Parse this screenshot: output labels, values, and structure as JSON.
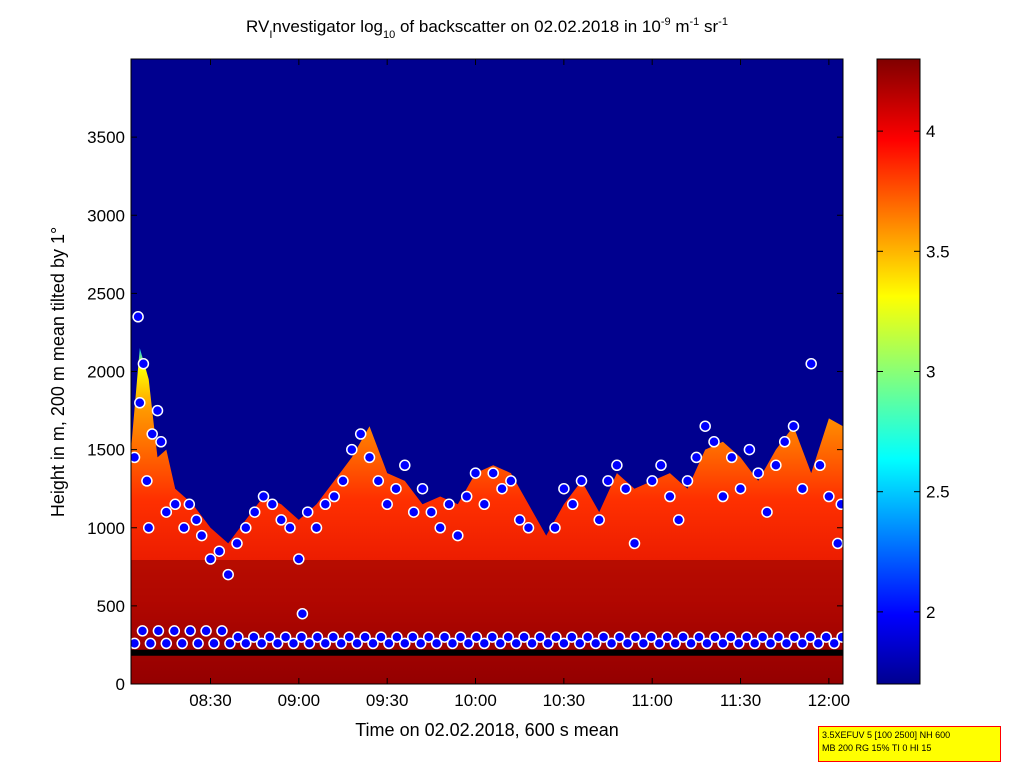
{
  "chart_data": {
    "type": "heatmap",
    "title": {
      "pre": "RV",
      "sub_i": "I",
      "mid": "nvestigator log",
      "sub10": "10",
      "post1": " of backscatter on 02.02.2018 in 10",
      "sup_m9": "-9",
      "post2": " m",
      "sup_m1": "-1",
      "post3": " sr",
      "sup_m1b": "-1"
    },
    "xlabel": "Time on 02.02.2018, 600 s mean",
    "ylabel": "Height in m, 200 m mean tilted by 1°",
    "x_ticks": [
      "08:30",
      "09:00",
      "09:30",
      "10:00",
      "10:30",
      "11:00",
      "11:30",
      "12:00"
    ],
    "x_tick_hours": [
      8.5,
      9.0,
      9.5,
      10.0,
      10.5,
      11.0,
      11.5,
      12.0
    ],
    "x_range_hours": [
      8.05,
      12.08
    ],
    "y_ticks": [
      "0",
      "500",
      "1000",
      "1500",
      "2000",
      "2500",
      "3000",
      "3500"
    ],
    "y_tick_values": [
      0,
      500,
      1000,
      1500,
      2000,
      2500,
      3000,
      3500
    ],
    "y_range": [
      0,
      4000
    ],
    "colorbar": {
      "ticks": [
        "2",
        "2.5",
        "3",
        "3.5",
        "4"
      ],
      "tick_values": [
        2,
        2.5,
        3,
        3.5,
        4
      ],
      "range": [
        1.7,
        4.3
      ],
      "colormap": "jet"
    },
    "cloud_top_profile": [
      [
        8.05,
        1500
      ],
      [
        8.1,
        2150
      ],
      [
        8.15,
        1950
      ],
      [
        8.2,
        1450
      ],
      [
        8.25,
        1500
      ],
      [
        8.3,
        1250
      ],
      [
        8.4,
        1150
      ],
      [
        8.5,
        1000
      ],
      [
        8.6,
        900
      ],
      [
        8.7,
        1050
      ],
      [
        8.8,
        1200
      ],
      [
        8.9,
        1150
      ],
      [
        9.0,
        1050
      ],
      [
        9.1,
        1150
      ],
      [
        9.2,
        1300
      ],
      [
        9.3,
        1450
      ],
      [
        9.4,
        1650
      ],
      [
        9.5,
        1350
      ],
      [
        9.6,
        1300
      ],
      [
        9.7,
        1150
      ],
      [
        9.8,
        1200
      ],
      [
        9.9,
        1150
      ],
      [
        10.0,
        1350
      ],
      [
        10.1,
        1400
      ],
      [
        10.2,
        1350
      ],
      [
        10.3,
        1150
      ],
      [
        10.4,
        950
      ],
      [
        10.5,
        1150
      ],
      [
        10.6,
        1300
      ],
      [
        10.7,
        1100
      ],
      [
        10.8,
        1350
      ],
      [
        10.9,
        1250
      ],
      [
        11.0,
        1300
      ],
      [
        11.1,
        1350
      ],
      [
        11.2,
        1250
      ],
      [
        11.3,
        1500
      ],
      [
        11.4,
        1550
      ],
      [
        11.5,
        1450
      ],
      [
        11.6,
        1300
      ],
      [
        11.7,
        1500
      ],
      [
        11.8,
        1650
      ],
      [
        11.9,
        1350
      ],
      [
        12.0,
        1700
      ],
      [
        12.08,
        1650
      ]
    ],
    "boundary_layer_markers": {
      "height_m": 300,
      "black_line_height_m": 200
    },
    "layer_marker_points": [
      [
        8.07,
        1450
      ],
      [
        8.09,
        2350
      ],
      [
        8.1,
        1800
      ],
      [
        8.12,
        2050
      ],
      [
        8.14,
        1300
      ],
      [
        8.15,
        1000
      ],
      [
        8.17,
        1600
      ],
      [
        8.2,
        1750
      ],
      [
        8.22,
        1550
      ],
      [
        8.25,
        1100
      ],
      [
        8.3,
        1150
      ],
      [
        8.35,
        1000
      ],
      [
        8.38,
        1150
      ],
      [
        8.42,
        1050
      ],
      [
        8.45,
        950
      ],
      [
        8.5,
        800
      ],
      [
        8.55,
        850
      ],
      [
        8.6,
        700
      ],
      [
        8.65,
        900
      ],
      [
        8.7,
        1000
      ],
      [
        8.75,
        1100
      ],
      [
        8.8,
        1200
      ],
      [
        8.85,
        1150
      ],
      [
        8.9,
        1050
      ],
      [
        8.95,
        1000
      ],
      [
        9.0,
        800
      ],
      [
        9.02,
        450
      ],
      [
        9.05,
        1100
      ],
      [
        9.1,
        1000
      ],
      [
        9.15,
        1150
      ],
      [
        9.2,
        1200
      ],
      [
        9.25,
        1300
      ],
      [
        9.3,
        1500
      ],
      [
        9.35,
        1600
      ],
      [
        9.4,
        1450
      ],
      [
        9.45,
        1300
      ],
      [
        9.5,
        1150
      ],
      [
        9.55,
        1250
      ],
      [
        9.6,
        1400
      ],
      [
        9.65,
        1100
      ],
      [
        9.7,
        1250
      ],
      [
        9.75,
        1100
      ],
      [
        9.8,
        1000
      ],
      [
        9.85,
        1150
      ],
      [
        9.9,
        950
      ],
      [
        9.95,
        1200
      ],
      [
        10.0,
        1350
      ],
      [
        10.05,
        1150
      ],
      [
        10.1,
        1350
      ],
      [
        10.15,
        1250
      ],
      [
        10.2,
        1300
      ],
      [
        10.25,
        1050
      ],
      [
        10.3,
        1000
      ],
      [
        10.45,
        1000
      ],
      [
        10.5,
        1250
      ],
      [
        10.55,
        1150
      ],
      [
        10.6,
        1300
      ],
      [
        10.7,
        1050
      ],
      [
        10.75,
        1300
      ],
      [
        10.8,
        1400
      ],
      [
        10.85,
        1250
      ],
      [
        10.9,
        900
      ],
      [
        11.0,
        1300
      ],
      [
        11.05,
        1400
      ],
      [
        11.1,
        1200
      ],
      [
        11.15,
        1050
      ],
      [
        11.2,
        1300
      ],
      [
        11.25,
        1450
      ],
      [
        11.3,
        1650
      ],
      [
        11.35,
        1550
      ],
      [
        11.4,
        1200
      ],
      [
        11.45,
        1450
      ],
      [
        11.5,
        1250
      ],
      [
        11.55,
        1500
      ],
      [
        11.6,
        1350
      ],
      [
        11.65,
        1100
      ],
      [
        11.7,
        1400
      ],
      [
        11.75,
        1550
      ],
      [
        11.8,
        1650
      ],
      [
        11.85,
        1250
      ],
      [
        11.9,
        2050
      ],
      [
        11.95,
        1400
      ],
      [
        12.0,
        1200
      ],
      [
        12.05,
        900
      ],
      [
        12.07,
        1150
      ]
    ]
  },
  "params": {
    "line1": "3.5XEFUV 5 [100 2500] NH 600",
    "line2": "MB 200 RG 15% TI 0 HI 15"
  }
}
